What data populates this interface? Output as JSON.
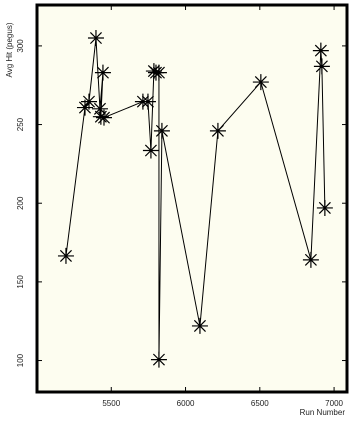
{
  "chart_data": {
    "type": "line",
    "y_label": "Avg Hit (pegus)",
    "x_label": "Run Number",
    "x": [
      5195,
      5323,
      5350,
      5397,
      5424,
      5444,
      5430,
      5451,
      5713,
      5747,
      5767,
      5787,
      5801,
      5821,
      5821,
      5841,
      6097,
      6218,
      6507,
      6844,
      6911,
      6918,
      6938
    ],
    "series": [
      {
        "name": "Avg Hit",
        "color": "#000000",
        "values": [
          166.5,
          260.8,
          264.6,
          305,
          260,
          283,
          255,
          254.4,
          264.6,
          264.6,
          233.5,
          284,
          283,
          283,
          100.6,
          246,
          122,
          246,
          277,
          164,
          297,
          287,
          197
        ]
      }
    ],
    "xlim": [
      5000,
      7087
    ],
    "xticks": [
      5500,
      6000,
      6500,
      7000
    ],
    "ylim": [
      80,
      326
    ],
    "yticks": [
      100,
      150,
      200,
      250,
      300
    ],
    "background": "#fdfdf0"
  }
}
